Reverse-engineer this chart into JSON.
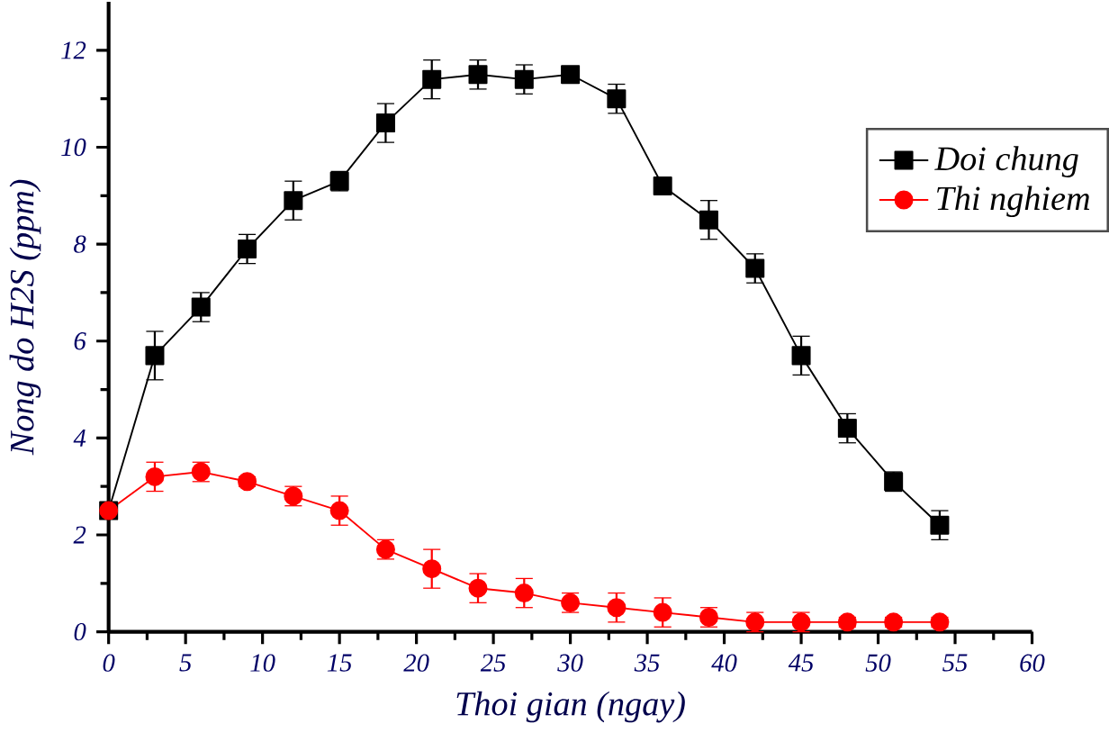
{
  "chart_data": {
    "type": "line",
    "xlabel": "Thoi gian (ngay)",
    "ylabel": "Nong do H2S (ppm)",
    "xlim": [
      0,
      60
    ],
    "ylim": [
      0,
      13
    ],
    "xticks": [
      0,
      5,
      10,
      15,
      20,
      25,
      30,
      35,
      40,
      45,
      50,
      55,
      60
    ],
    "yticks": [
      0,
      2,
      4,
      6,
      8,
      10,
      12
    ],
    "x": [
      0,
      3,
      6,
      9,
      12,
      15,
      18,
      21,
      24,
      27,
      30,
      33,
      36,
      39,
      42,
      45,
      48,
      51,
      54
    ],
    "legend": "right",
    "grid": false,
    "line_style": "solid",
    "series": [
      {
        "name": "Doi chung",
        "color": "#000000",
        "marker": "square",
        "values": [
          2.5,
          5.7,
          6.7,
          7.9,
          8.9,
          9.3,
          10.5,
          11.4,
          11.5,
          11.4,
          11.5,
          11.0,
          9.2,
          8.5,
          7.5,
          5.7,
          4.2,
          3.1,
          2.2
        ],
        "errors": [
          null,
          0.5,
          0.3,
          0.3,
          0.4,
          0.2,
          0.4,
          0.4,
          0.3,
          0.3,
          0.15,
          0.3,
          0.1,
          0.4,
          0.3,
          0.4,
          0.3,
          0.2,
          0.3
        ]
      },
      {
        "name": "Thi nghiem",
        "color": "#ff0000",
        "marker": "circle",
        "values": [
          2.5,
          3.2,
          3.3,
          3.1,
          2.8,
          2.5,
          1.7,
          1.3,
          0.9,
          0.8,
          0.6,
          0.5,
          0.4,
          0.3,
          0.2,
          0.2,
          0.2,
          0.2,
          0.2
        ],
        "errors": [
          null,
          0.3,
          0.2,
          0.1,
          0.2,
          0.3,
          0.2,
          0.4,
          0.3,
          0.3,
          0.2,
          0.3,
          0.3,
          0.2,
          0.2,
          0.2,
          0.1,
          0.1,
          0.1
        ]
      }
    ]
  }
}
